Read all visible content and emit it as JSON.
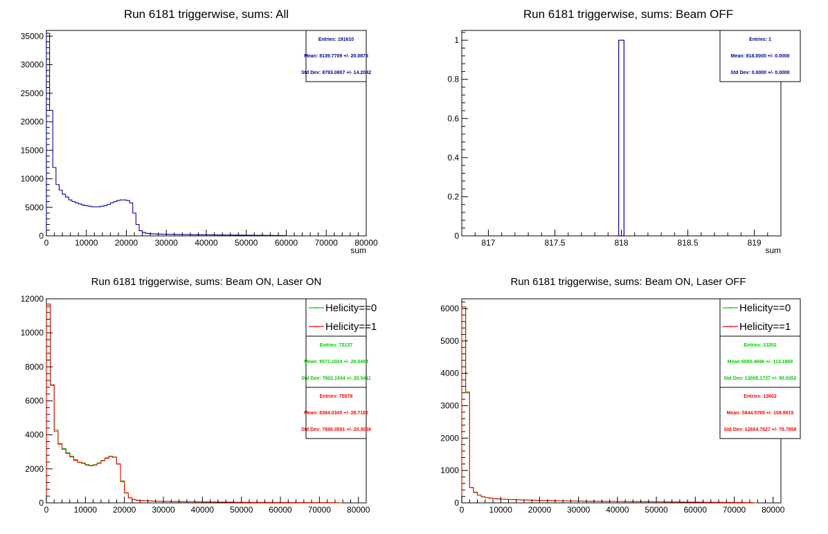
{
  "colors": {
    "blue": "#000099",
    "green": "#00cc00",
    "red": "#ff0000",
    "axis": "#000000"
  },
  "chart_data": [
    {
      "type": "histogram",
      "title": "Run 6181 triggerwise, sums: All",
      "xlabel": "sum",
      "xlim": [
        0,
        80000
      ],
      "ylim": [
        0,
        36000
      ],
      "xticks": [
        0,
        10000,
        20000,
        30000,
        40000,
        50000,
        60000,
        70000,
        80000
      ],
      "yticks": [
        0,
        5000,
        10000,
        15000,
        20000,
        25000,
        30000,
        35000
      ],
      "bin_width": 800,
      "series": [
        {
          "color": "blue",
          "values": [
            35500,
            22000,
            12000,
            9000,
            8000,
            7300,
            6800,
            6300,
            6000,
            5800,
            5600,
            5400,
            5300,
            5200,
            5100,
            5100,
            5100,
            5200,
            5300,
            5500,
            5800,
            6000,
            6200,
            6300,
            6300,
            6200,
            5800,
            4000,
            2000,
            900,
            600,
            450,
            400,
            350,
            330,
            310,
            300,
            290,
            280,
            270,
            260,
            250,
            240,
            230,
            220,
            210,
            200,
            195,
            190,
            185,
            180,
            175,
            170,
            165,
            160,
            155,
            150,
            145,
            140,
            135,
            130,
            125,
            120,
            115,
            110,
            105,
            100,
            95,
            90,
            85,
            80,
            75,
            70,
            65,
            60,
            0
          ]
        }
      ],
      "stats": [
        {
          "color": "blue",
          "lines": [
            "Entries: 191610",
            "Mean: 8139.7709 +/- 20.0878",
            "Std Dev: 8793.0807 +/- 14.2042"
          ]
        }
      ],
      "legend": []
    },
    {
      "type": "histogram",
      "title": "Run 6181 triggerwise, sums: Beam OFF",
      "xlabel": "sum",
      "xlim": [
        816.8,
        819.2
      ],
      "ylim": [
        0,
        1.05
      ],
      "xticks": [
        817,
        817.5,
        818,
        818.5,
        819
      ],
      "xticklabels": [
        "817",
        "817.5",
        "818",
        "818.5",
        "819"
      ],
      "yticks": [
        0,
        0.2,
        0.4,
        0.6,
        0.8,
        1
      ],
      "yticklabels": [
        "0",
        "0.2",
        "0.4",
        "0.6",
        "0.8",
        "1"
      ],
      "bars": [
        {
          "color": "blue",
          "x0": 817.98,
          "x1": 818.02,
          "value": 1
        }
      ],
      "stats": [
        {
          "color": "blue",
          "lines": [
            "Entries: 1",
            "Mean: 818.0000 +/- 0.0000",
            "Std Dev: 0.0000 +/- 0.0000"
          ]
        }
      ],
      "legend": []
    },
    {
      "type": "histogram",
      "title": "Run 6181 triggerwise, sums: Beam ON, Laser ON",
      "xlabel": "",
      "xlim": [
        0,
        82000
      ],
      "ylim": [
        0,
        12000
      ],
      "xticks": [
        0,
        10000,
        20000,
        30000,
        40000,
        50000,
        60000,
        70000,
        80000
      ],
      "yticks": [
        0,
        2000,
        4000,
        6000,
        8000,
        10000,
        12000
      ],
      "bin_width": 1000,
      "series": [
        {
          "name": "Helicity==0",
          "color": "green",
          "values": [
            11500,
            6900,
            4300,
            3500,
            3200,
            2950,
            2750,
            2550,
            2400,
            2350,
            2250,
            2200,
            2250,
            2350,
            2500,
            2650,
            2750,
            2700,
            2300,
            1300,
            600,
            300,
            200,
            150,
            140,
            130,
            120,
            110,
            100,
            95,
            90,
            85,
            80,
            75,
            70,
            68,
            65,
            63,
            60,
            58,
            56,
            54,
            52,
            50,
            48,
            46,
            44,
            42,
            40,
            38,
            36,
            34,
            32,
            30,
            29,
            28,
            27,
            26,
            25,
            24,
            23,
            22,
            21,
            20,
            19,
            18,
            17,
            16,
            15,
            14,
            13,
            12,
            11,
            10,
            9,
            0
          ]
        },
        {
          "name": "Helicity==1",
          "color": "red",
          "values": [
            11700,
            6950,
            4200,
            3450,
            3150,
            2900,
            2700,
            2500,
            2380,
            2320,
            2220,
            2180,
            2230,
            2320,
            2480,
            2620,
            2720,
            2680,
            2280,
            1250,
            580,
            290,
            190,
            145,
            135,
            125,
            115,
            105,
            98,
            92,
            88,
            82,
            78,
            73,
            69,
            66,
            63,
            61,
            59,
            57,
            55,
            53,
            51,
            49,
            47,
            45,
            43,
            41,
            39,
            37,
            35,
            33,
            31,
            29,
            28,
            27,
            26,
            25,
            24,
            23,
            22,
            21,
            20,
            19,
            18,
            17,
            16,
            15,
            14,
            13,
            12,
            11,
            10,
            9,
            8,
            0
          ]
        }
      ],
      "stats": [
        {
          "color": "green",
          "lines": [
            "Entries: 72137",
            "Mean: 8571.1024 +/- 29.0494",
            "Std Dev: 7802.1934 +/- 20.5411"
          ]
        },
        {
          "color": "red",
          "lines": [
            "Entries: 75578",
            "Mean: 8384.0345 +/- 28.7182",
            "Std Dev: 7895.0591 +/- 20.3069"
          ]
        }
      ],
      "legend": [
        {
          "label": "Helicity==0",
          "color": "green"
        },
        {
          "label": "Helicity==1",
          "color": "red"
        }
      ]
    },
    {
      "type": "histogram",
      "title": "Run 6181 triggerwise, sums: Beam ON, Laser OFF",
      "xlabel": "",
      "xlim": [
        0,
        82000
      ],
      "ylim": [
        0,
        6300
      ],
      "xticks": [
        0,
        10000,
        20000,
        30000,
        40000,
        50000,
        60000,
        70000,
        80000
      ],
      "yticks": [
        0,
        1000,
        2000,
        3000,
        4000,
        5000,
        6000
      ],
      "bin_width": 1000,
      "series": [
        {
          "name": "Helicity==0",
          "color": "green",
          "values": [
            6000,
            3400,
            480,
            330,
            240,
            190,
            160,
            145,
            135,
            125,
            118,
            112,
            106,
            101,
            97,
            93,
            89,
            86,
            83,
            80,
            77,
            74,
            71,
            69,
            67,
            65,
            63,
            61,
            59,
            57,
            55,
            53,
            51,
            50,
            49,
            48,
            47,
            46,
            45,
            44,
            43,
            42,
            41,
            40,
            39,
            38,
            37,
            36,
            35,
            34,
            33,
            32,
            31,
            30,
            29,
            28,
            27,
            26,
            25,
            24,
            23,
            22,
            21,
            20,
            19,
            18,
            17,
            16,
            15,
            14,
            13,
            12,
            11,
            10,
            9,
            0
          ]
        },
        {
          "name": "Helicity==1",
          "color": "red",
          "values": [
            6050,
            3420,
            470,
            320,
            235,
            185,
            158,
            143,
            132,
            122,
            115,
            109,
            104,
            99,
            95,
            91,
            87,
            84,
            81,
            78,
            75,
            72,
            70,
            68,
            66,
            64,
            62,
            60,
            58,
            56,
            54,
            52,
            50,
            49,
            48,
            47,
            46,
            45,
            44,
            43,
            42,
            41,
            40,
            39,
            38,
            37,
            36,
            35,
            34,
            33,
            32,
            31,
            30,
            29,
            28,
            27,
            26,
            25,
            24,
            23,
            22,
            21,
            20,
            19,
            18,
            17,
            16,
            15,
            14,
            13,
            12,
            11,
            10,
            9,
            8,
            0
          ]
        }
      ],
      "stats": [
        {
          "color": "green",
          "lines": [
            "Entries: 13202",
            "Mean:6085.4696 +/- 113.1869",
            "Std Dev: 13005.1737 +/- 80.0352"
          ]
        },
        {
          "color": "red",
          "lines": [
            "Entries: 13602",
            "Mean: 5844.5765 +/- 108.9915",
            "Std Dev: 12664.7627 +/- 76.7858"
          ]
        }
      ],
      "legend": [
        {
          "label": "Helicity==0",
          "color": "green"
        },
        {
          "label": "Helicity==1",
          "color": "red"
        }
      ]
    }
  ]
}
